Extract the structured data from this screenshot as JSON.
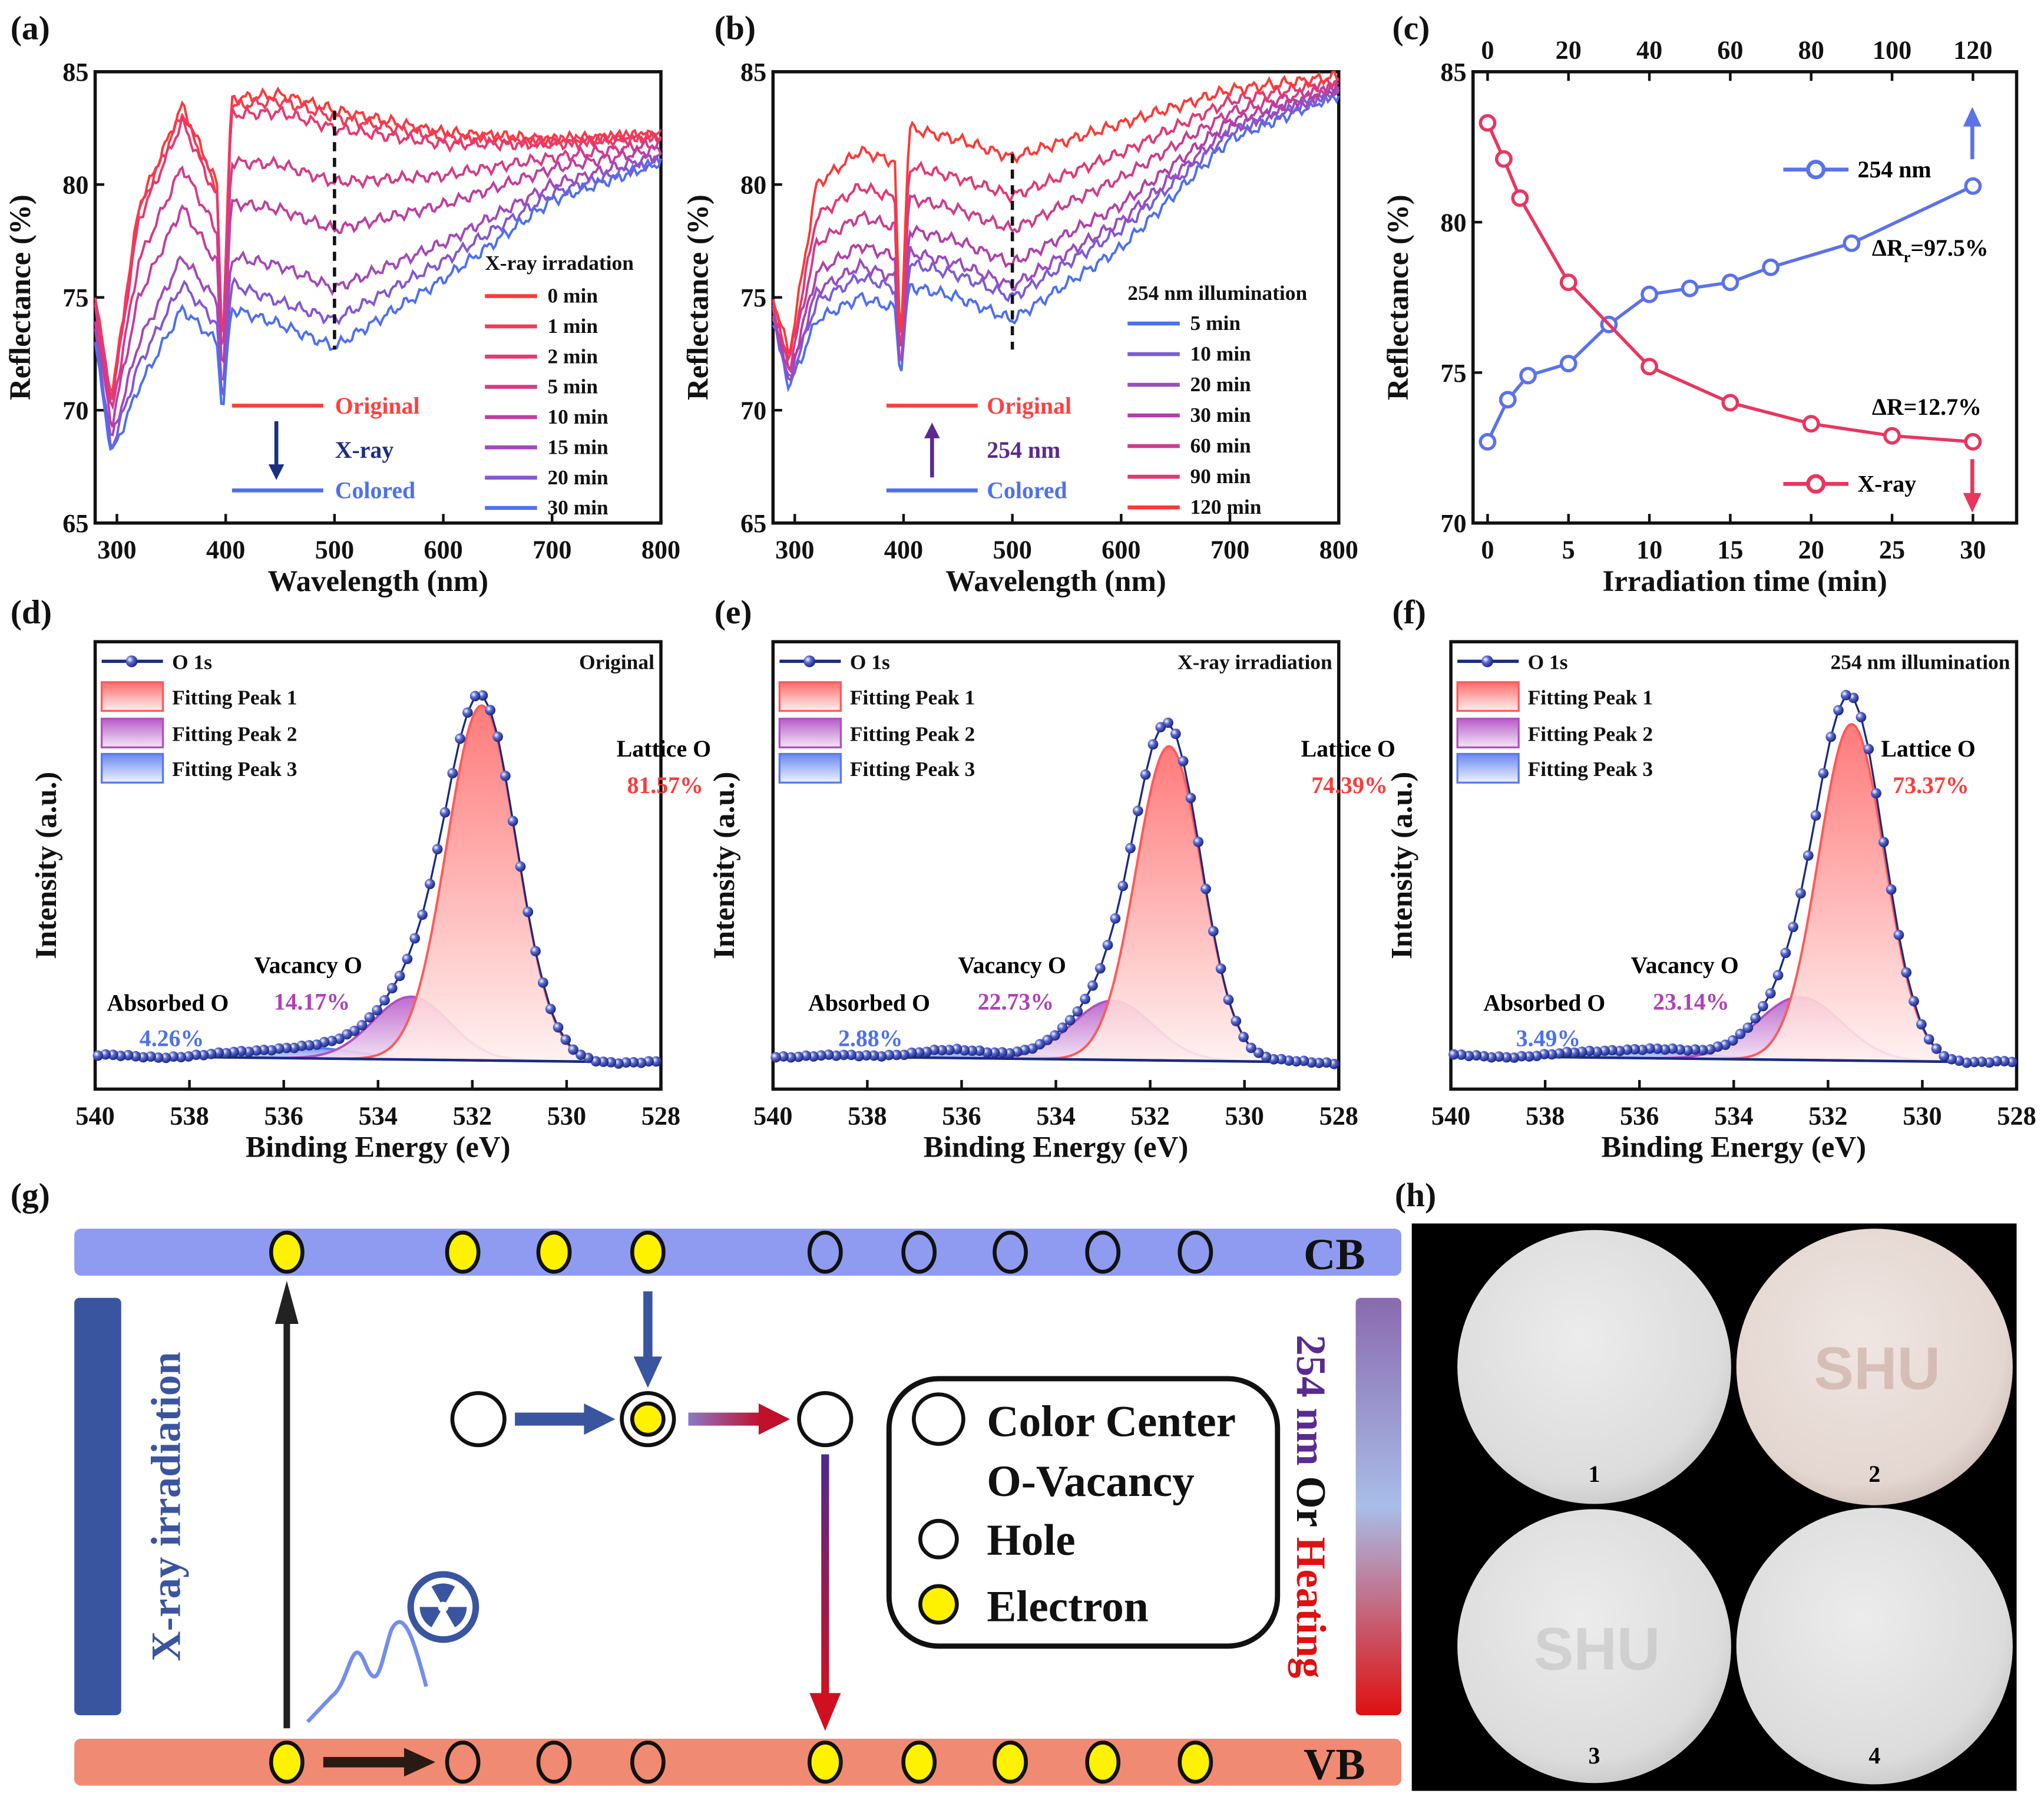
{
  "panel_labels": [
    "(a)",
    "(b)",
    "(c)",
    "(d)",
    "(e)",
    "(f)",
    "(g)",
    "(h)"
  ],
  "colors": {
    "xray": "#e8365f",
    "uv": "#5b72ec",
    "xps_dots": "#1a2a80",
    "peak1": "#ff5a5a",
    "peak2": "#b050c0",
    "peak3": "#5a7ae8",
    "cb": "#8f9bf0",
    "vb": "#f08a72",
    "electron": "#fff200",
    "xray_bar": "#3a55a0"
  },
  "chart_data": [
    {
      "id": "a",
      "type": "line",
      "xlabel": "Wavelength (nm)",
      "ylabel": "Reflectance (%)",
      "xlim": [
        280,
        800
      ],
      "ylim": [
        65,
        85
      ],
      "xticks": [
        300,
        400,
        500,
        600,
        700,
        800
      ],
      "yticks": [
        65,
        70,
        75,
        80,
        85
      ],
      "legend_title": "X-ray irradation",
      "marker_line_nm": 500,
      "annotations": {
        "top": "Original",
        "middle": "X-ray",
        "bottom": "Colored"
      },
      "x": [
        280,
        295,
        320,
        360,
        392,
        397,
        405,
        450,
        500,
        600,
        700,
        800
      ],
      "series": [
        {
          "name": "0 min",
          "color": "#ff3838",
          "values": [
            75,
            70.5,
            79,
            83.5,
            80,
            72.5,
            83.8,
            84,
            83.3,
            82.3,
            82,
            82.2
          ]
        },
        {
          "name": "1 min",
          "color": "#f53a55",
          "values": [
            74.9,
            70.4,
            78.8,
            83.2,
            79.8,
            72.4,
            83.5,
            83.7,
            83,
            82.1,
            81.9,
            82.2
          ]
        },
        {
          "name": "2 min",
          "color": "#e8386f",
          "values": [
            74.8,
            70.3,
            78.4,
            82.8,
            79.4,
            72.3,
            83.1,
            83.2,
            82.5,
            81.8,
            81.8,
            82.1
          ]
        },
        {
          "name": "5 min",
          "color": "#d63a88",
          "values": [
            74.4,
            69.8,
            76.6,
            80.8,
            77.9,
            71.7,
            81,
            80.9,
            80.1,
            80.4,
            81.2,
            81.8
          ]
        },
        {
          "name": "10 min",
          "color": "#bf3ea0",
          "values": [
            74,
            69.3,
            75,
            79,
            76.5,
            71.2,
            79.2,
            78.9,
            78,
            79.1,
            80.7,
            81.6
          ]
        },
        {
          "name": "15 min",
          "color": "#a448b8",
          "values": [
            73.5,
            68.6,
            73,
            76.8,
            74.8,
            70.5,
            76.8,
            76.4,
            75.4,
            77.4,
            80,
            81.3
          ]
        },
        {
          "name": "20 min",
          "color": "#8456d4",
          "values": [
            73.2,
            68.3,
            72,
            75.6,
            73.8,
            70.1,
            75.6,
            74.8,
            74,
            76.6,
            79.6,
            81.1
          ]
        },
        {
          "name": "30 min",
          "color": "#4d70f0",
          "values": [
            73,
            68,
            71,
            74.5,
            73,
            69.8,
            74.5,
            73.8,
            72.8,
            75.8,
            79.3,
            81
          ]
        }
      ]
    },
    {
      "id": "b",
      "type": "line",
      "xlabel": "Wavelength (nm)",
      "ylabel": "Reflectance (%)",
      "xlim": [
        280,
        800
      ],
      "ylim": [
        65,
        85
      ],
      "xticks": [
        300,
        400,
        500,
        600,
        700,
        800
      ],
      "yticks": [
        65,
        70,
        75,
        80,
        85
      ],
      "legend_title": "254 nm illumination",
      "marker_line_nm": 500,
      "annotations": {
        "top": "Original",
        "middle": "254 nm",
        "bottom": "Colored"
      },
      "x": [
        280,
        295,
        320,
        360,
        392,
        397,
        405,
        450,
        500,
        600,
        700,
        800
      ],
      "series": [
        {
          "name": "5 min",
          "color": "#4d70f0",
          "values": [
            74,
            71,
            74,
            75,
            74.5,
            71.5,
            75.5,
            75,
            74,
            77.2,
            82,
            84
          ]
        },
        {
          "name": "10 min",
          "color": "#7a5cd8",
          "values": [
            74.1,
            71.2,
            74.8,
            75.9,
            75.4,
            71.6,
            76.5,
            76,
            75,
            78,
            82.3,
            84.1
          ]
        },
        {
          "name": "20 min",
          "color": "#9a4cc0",
          "values": [
            74.2,
            71.3,
            75.3,
            76.4,
            75.9,
            71.7,
            77,
            76.5,
            75.5,
            78.4,
            82.5,
            84.2
          ]
        },
        {
          "name": "30 min",
          "color": "#b040a8",
          "values": [
            74.4,
            71.5,
            76.1,
            77.3,
            76.8,
            71.9,
            78,
            77.5,
            76.5,
            79.1,
            82.8,
            84.3
          ]
        },
        {
          "name": "60 min",
          "color": "#cc3d8f",
          "values": [
            74.6,
            71.8,
            77.4,
            78.6,
            78.1,
            72.1,
            79.4,
            78.9,
            78,
            80.3,
            83.2,
            84.4
          ]
        },
        {
          "name": "90 min",
          "color": "#e4386f",
          "values": [
            74.8,
            72.1,
            78.6,
            79.9,
            79.4,
            72.3,
            80.8,
            80.3,
            79.5,
            81.4,
            83.7,
            84.6
          ]
        },
        {
          "name": "120 min",
          "color": "#ff3838",
          "values": [
            75,
            72.5,
            80,
            81.5,
            81,
            72.5,
            82.5,
            82,
            81.2,
            82.7,
            84.2,
            84.8
          ]
        }
      ]
    },
    {
      "id": "c",
      "type": "scatter",
      "xlabel": "Irradiation time (min)",
      "ylabel": "Reflectance (%)",
      "xlim": [
        -0.9,
        32.7
      ],
      "ylim": [
        70,
        85
      ],
      "xticks": [
        0,
        5,
        10,
        15,
        20,
        25,
        30
      ],
      "yticks": [
        70,
        75,
        80,
        85
      ],
      "x2lim": [
        -3.6,
        130.8
      ],
      "x2ticks": [
        0,
        20,
        40,
        60,
        80,
        100,
        120
      ],
      "series": [
        {
          "name": "254 nm",
          "axis": "top",
          "x": [
            0,
            5,
            10,
            20,
            30,
            40,
            50,
            60,
            70,
            90,
            120
          ],
          "values": [
            72.7,
            74.1,
            74.9,
            75.3,
            76.6,
            77.6,
            77.8,
            78,
            78.5,
            79.3,
            81.2
          ]
        },
        {
          "name": "X-ray",
          "axis": "bottom",
          "x": [
            0,
            1,
            2,
            5,
            10,
            15,
            20,
            25,
            30
          ],
          "values": [
            83.3,
            82.1,
            80.8,
            78,
            75.2,
            74,
            73.3,
            72.9,
            72.7
          ]
        }
      ],
      "annotations": {
        "delta_r_main": "ΔR",
        "delta_r_sub": "r",
        "delta_r_value": "=97.5%",
        "delta_r2": "ΔR=12.7%"
      }
    },
    {
      "id": "d",
      "type": "line",
      "xlabel": "Binding Energy (eV)",
      "ylabel": "Intensity (a.u.)",
      "xlim": [
        540,
        528
      ],
      "ylim": [
        -0.06,
        1.15
      ],
      "xticks": [
        540,
        538,
        536,
        534,
        532,
        530,
        528
      ],
      "condition": "Original",
      "legend": [
        "O 1s",
        "Fitting Peak 1",
        "Fitting Peak 2",
        "Fitting Peak 3"
      ],
      "peaks": [
        {
          "center": 531.8,
          "height": 0.96,
          "fwhm": 1.75
        },
        {
          "center": 533.3,
          "height": 0.17,
          "fwhm": 1.9
        },
        {
          "center": 535.6,
          "height": 0.03,
          "fwhm": 2.6
        }
      ],
      "labels": {
        "lattice": "Lattice O",
        "lattice_pct": "81.57%",
        "vacancy": "Vacancy O",
        "vacancy_pct": "14.17%",
        "absorbed": "Absorbed O",
        "absorbed_pct": "4.26%"
      }
    },
    {
      "id": "e",
      "type": "line",
      "xlabel": "Binding Energy (eV)",
      "ylabel": "Intensity (a.u.)",
      "xlim": [
        540,
        528
      ],
      "ylim": [
        -0.06,
        1.15
      ],
      "xticks": [
        540,
        538,
        536,
        534,
        532,
        530,
        528
      ],
      "condition": "X-ray irradiation",
      "legend": [
        "O 1s",
        "Fitting Peak 1",
        "Fitting Peak 2",
        "Fitting Peak 3"
      ],
      "peaks": [
        {
          "center": 531.6,
          "height": 0.85,
          "fwhm": 1.65
        },
        {
          "center": 532.8,
          "height": 0.16,
          "fwhm": 2.0
        },
        {
          "center": 536,
          "height": 0.02,
          "fwhm": 2.6
        }
      ],
      "labels": {
        "lattice": "Lattice O",
        "lattice_pct": "74.39%",
        "vacancy": "Vacancy O",
        "vacancy_pct": "22.73%",
        "absorbed": "Absorbed O",
        "absorbed_pct": "2.88%"
      }
    },
    {
      "id": "f",
      "type": "line",
      "xlabel": "Binding Energy (eV)",
      "ylabel": "Intensity (a.u.)",
      "xlim": [
        540,
        528
      ],
      "ylim": [
        -0.06,
        1.15
      ],
      "xticks": [
        540,
        538,
        536,
        534,
        532,
        530,
        528
      ],
      "condition": "254 nm illumination",
      "legend": [
        "O 1s",
        "Fitting Peak 1",
        "Fitting Peak 2",
        "Fitting Peak 3"
      ],
      "peaks": [
        {
          "center": 531.5,
          "height": 0.91,
          "fwhm": 1.65
        },
        {
          "center": 532.6,
          "height": 0.17,
          "fwhm": 2.1
        },
        {
          "center": 536,
          "height": 0.025,
          "fwhm": 2.6
        }
      ],
      "labels": {
        "lattice": "Lattice O",
        "lattice_pct": "73.37%",
        "vacancy": "Vacancy O",
        "vacancy_pct": "23.14%",
        "absorbed": "Absorbed O",
        "absorbed_pct": "3.49%"
      }
    }
  ],
  "diagram": {
    "cb_label": "CB",
    "vb_label": "VB",
    "cb_states": [
      "electron",
      "electron",
      "electron",
      "electron",
      "hole",
      "hole",
      "hole",
      "hole",
      "hole"
    ],
    "vb_states": [
      "electron",
      "hole",
      "hole",
      "hole",
      "electron",
      "electron",
      "electron",
      "electron",
      "electron"
    ],
    "left_label": "X-ray irradiation",
    "right_label_parts": [
      "254 nm",
      " Or ",
      "Heating"
    ],
    "legend": [
      "Color Center",
      "O-Vacancy",
      "Hole",
      "Electron"
    ]
  },
  "photos": {
    "labels": [
      "1",
      "2",
      "3",
      "4"
    ],
    "watermark_text": "SHU"
  }
}
